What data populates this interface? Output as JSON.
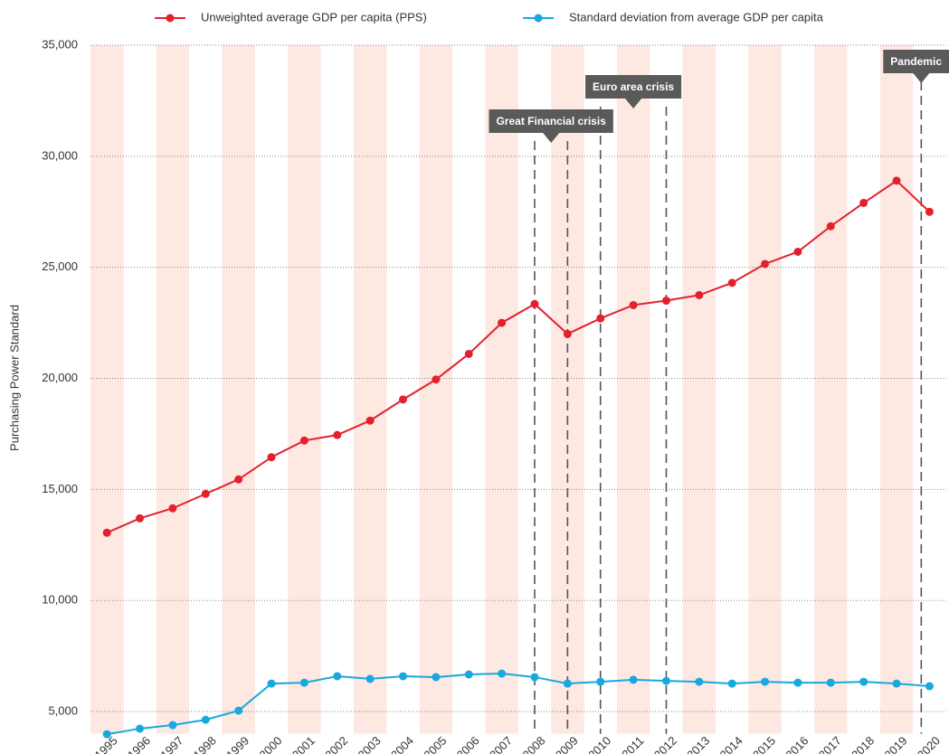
{
  "chart_data": {
    "type": "line",
    "y_label": "Purchasing Power Standard",
    "x": [
      1995,
      1996,
      1997,
      1998,
      1999,
      2000,
      2001,
      2002,
      2003,
      2004,
      2005,
      2006,
      2007,
      2008,
      2009,
      2010,
      2011,
      2012,
      2013,
      2014,
      2015,
      2016,
      2017,
      2018,
      2019,
      2020
    ],
    "xlim": [
      1994.5,
      2020.5
    ],
    "series": [
      {
        "name": "Unweighted average GDP per capita (PPS)",
        "color": "#e3212d",
        "values": [
          13050,
          13700,
          14150,
          14800,
          15450,
          16450,
          17200,
          17450,
          18100,
          19050,
          19950,
          21100,
          22500,
          23350,
          22000,
          22700,
          23300,
          23500,
          23750,
          24300,
          25150,
          25700,
          26850,
          27900,
          28900,
          27500
        ]
      },
      {
        "name": "Standard deviation from average GDP per capita",
        "color": "#19a8de",
        "values": [
          3980,
          4230,
          4390,
          4630,
          5040,
          6260,
          6300,
          6590,
          6470,
          6590,
          6550,
          6670,
          6710,
          6550,
          6260,
          6340,
          6430,
          6380,
          6340,
          6260,
          6340,
          6300,
          6300,
          6340,
          6260,
          6140
        ]
      }
    ],
    "ylim": [
      4000,
      35000
    ],
    "yticks": [
      {
        "value": 5000,
        "label": "5,000"
      },
      {
        "value": 10000,
        "label": "10,000"
      },
      {
        "value": 15000,
        "label": "15,000"
      },
      {
        "value": 20000,
        "label": "20,000"
      },
      {
        "value": 25000,
        "label": "25,000"
      },
      {
        "value": 30000,
        "label": "30,000"
      },
      {
        "value": 35000,
        "label": "35,000"
      }
    ],
    "grid": true,
    "band_color": "#fde8e2",
    "legend": "top",
    "annotations": [
      {
        "label": "Great Financial crisis",
        "lines": [
          2008,
          2009
        ]
      },
      {
        "label": "Euro area crisis",
        "lines": [
          2010,
          2012
        ]
      },
      {
        "label": "Pandemic",
        "lines": [
          2019.75
        ]
      }
    ]
  }
}
